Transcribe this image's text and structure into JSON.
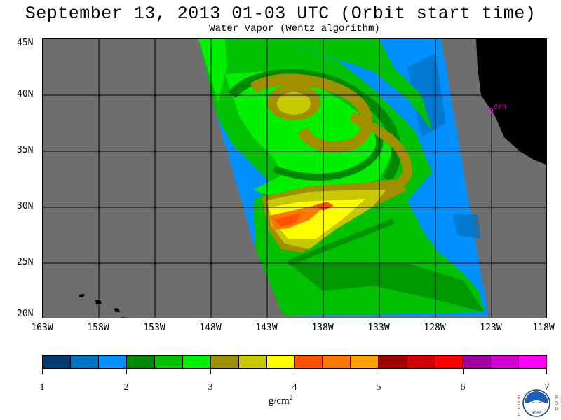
{
  "header": {
    "title": "September 13, 2013  01-03 UTC  (Orbit start time)",
    "subtitle": "Water Vapor (Wentz algorithm)"
  },
  "map": {
    "lat_labels": [
      "45N",
      "40N",
      "35N",
      "30N",
      "25N",
      "20N"
    ],
    "lon_labels": [
      "163W",
      "158W",
      "153W",
      "148W",
      "143W",
      "138W",
      "133W",
      "128W",
      "123W",
      "118W"
    ],
    "station_label": "CZD",
    "land_color": "#000000",
    "no_data_color": "#6e6e6e",
    "station_color": "#ff00ff"
  },
  "colorbar": {
    "colors": [
      "#003c70",
      "#0070c0",
      "#0090ff",
      "#008800",
      "#00c000",
      "#00f000",
      "#a09000",
      "#c8c800",
      "#ffff00",
      "#ff5000",
      "#ff7800",
      "#ffa000",
      "#a00000",
      "#d00000",
      "#ff0000",
      "#a000a0",
      "#d000d0",
      "#ff00ff"
    ],
    "tick_labels": [
      "1",
      "2",
      "3",
      "4",
      "5",
      "6",
      "7"
    ],
    "units": "g/cm",
    "units_sup": "2"
  },
  "logo": {
    "left_letters": [
      "E",
      "S",
      "R",
      "L"
    ],
    "right_letters": [
      "P",
      "S",
      "D"
    ],
    "text": "NOAA"
  }
}
